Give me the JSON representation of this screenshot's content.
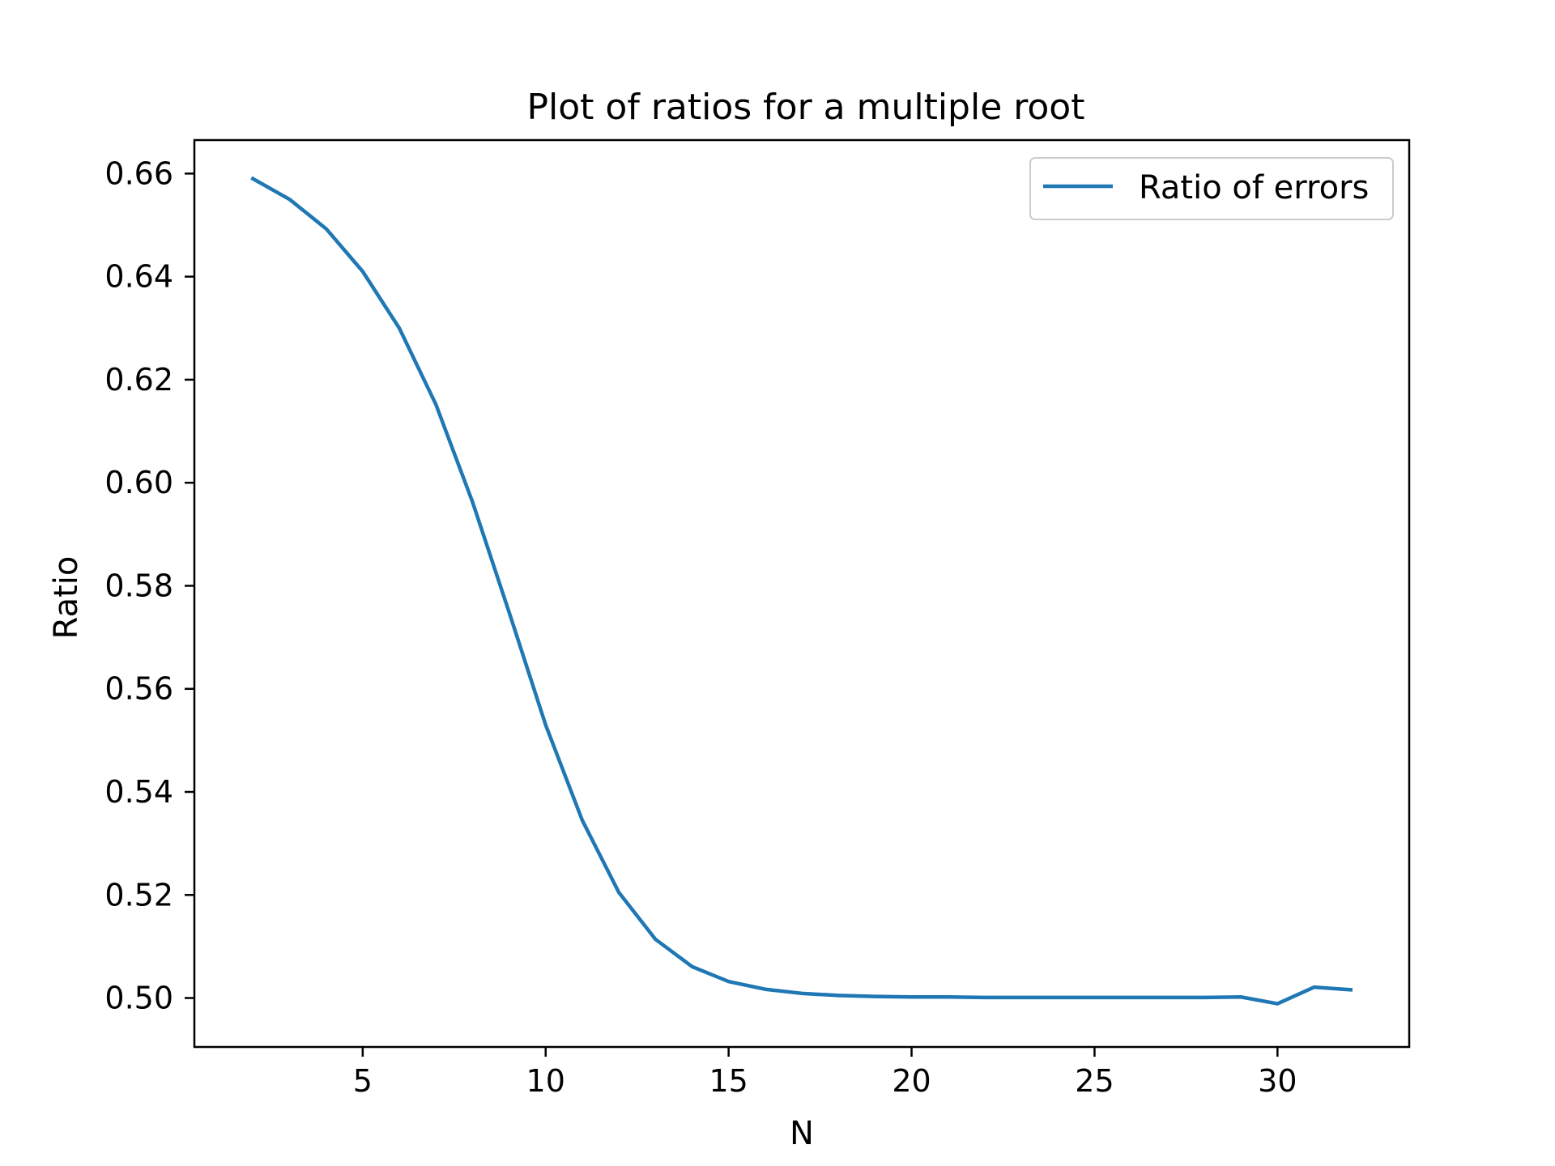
{
  "chart_data": {
    "type": "line",
    "title": "Plot of ratios for a multiple root",
    "xlabel": "N",
    "ylabel": "Ratio",
    "xlim": [
      0.4,
      33.6
    ],
    "ylim": [
      0.4905,
      0.6665
    ],
    "xticks": [
      5,
      10,
      15,
      20,
      25,
      30
    ],
    "xtick_labels": [
      "5",
      "10",
      "15",
      "20",
      "25",
      "30"
    ],
    "yticks": [
      0.5,
      0.52,
      0.54,
      0.56,
      0.58,
      0.6,
      0.62,
      0.64,
      0.66
    ],
    "ytick_labels": [
      "0.50",
      "0.52",
      "0.54",
      "0.56",
      "0.58",
      "0.60",
      "0.62",
      "0.64",
      "0.66"
    ],
    "grid": false,
    "legend_position": "top-right",
    "series": [
      {
        "name": "Ratio of errors",
        "color": "#1f77b4",
        "x": [
          2,
          3,
          4,
          5,
          6,
          7,
          8,
          9,
          10,
          11,
          12,
          13,
          14,
          15,
          16,
          17,
          18,
          19,
          20,
          21,
          22,
          23,
          24,
          25,
          26,
          27,
          28,
          29,
          30,
          31,
          32
        ],
        "y": [
          0.659,
          0.655,
          0.6493,
          0.641,
          0.63,
          0.6152,
          0.5963,
          0.5749,
          0.553,
          0.5345,
          0.5205,
          0.5114,
          0.5061,
          0.5032,
          0.5017,
          0.5009,
          0.5005,
          0.5003,
          0.5002,
          0.5002,
          0.5001,
          0.5001,
          0.5001,
          0.5001,
          0.5001,
          0.5001,
          0.5001,
          0.5002,
          0.4989,
          0.5021,
          0.5016
        ]
      }
    ]
  }
}
